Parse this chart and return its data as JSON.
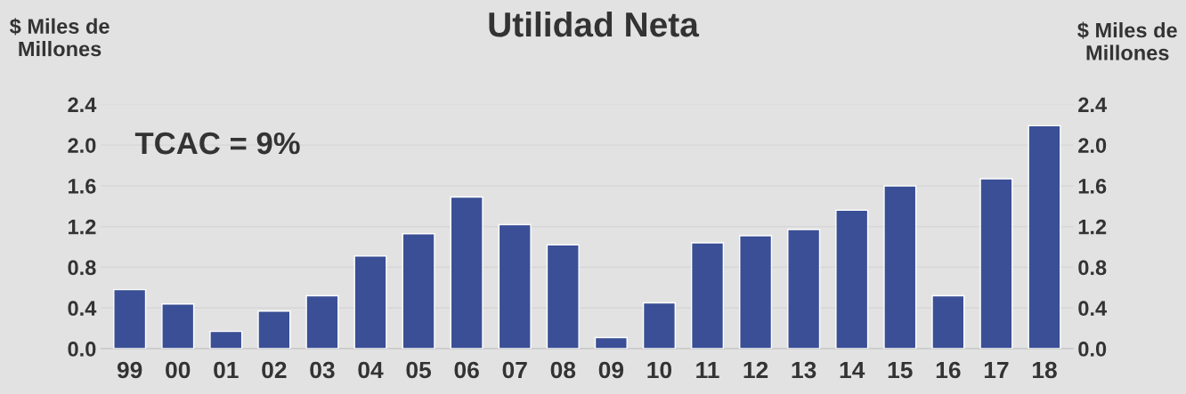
{
  "chart_data": {
    "type": "bar",
    "title": "Utilidad Neta",
    "ylabel": "$ Miles de\nMillones",
    "y2label": "$ Miles de\nMillones",
    "categories": [
      "99",
      "00",
      "01",
      "02",
      "03",
      "04",
      "05",
      "06",
      "07",
      "08",
      "09",
      "10",
      "11",
      "12",
      "13",
      "14",
      "15",
      "16",
      "17",
      "18"
    ],
    "series": [
      {
        "color": "#3a4f95",
        "values": [
          0.58,
          0.44,
          0.17,
          0.37,
          0.52,
          0.91,
          1.13,
          1.49,
          1.22,
          1.02,
          0.11,
          0.45,
          1.04,
          1.11,
          1.17,
          1.36,
          1.6,
          0.52,
          1.67,
          2.19
        ]
      }
    ],
    "ylim": [
      0,
      2.4
    ],
    "yticks": [
      {
        "value": 0,
        "label": "0.0"
      },
      0.4,
      0.8,
      1.2,
      1.6,
      {
        "value": 2,
        "label": "2.0"
      },
      2.4
    ],
    "y2lim": [
      0,
      2.4
    ],
    "y2ticks": [
      {
        "value": 0,
        "label": "0.0"
      },
      0.4,
      0.8,
      1.2,
      1.6,
      {
        "value": 2,
        "label": "2.0"
      },
      2.4
    ],
    "annotations": [
      "TCAC = 9%"
    ],
    "grid": "y"
  }
}
